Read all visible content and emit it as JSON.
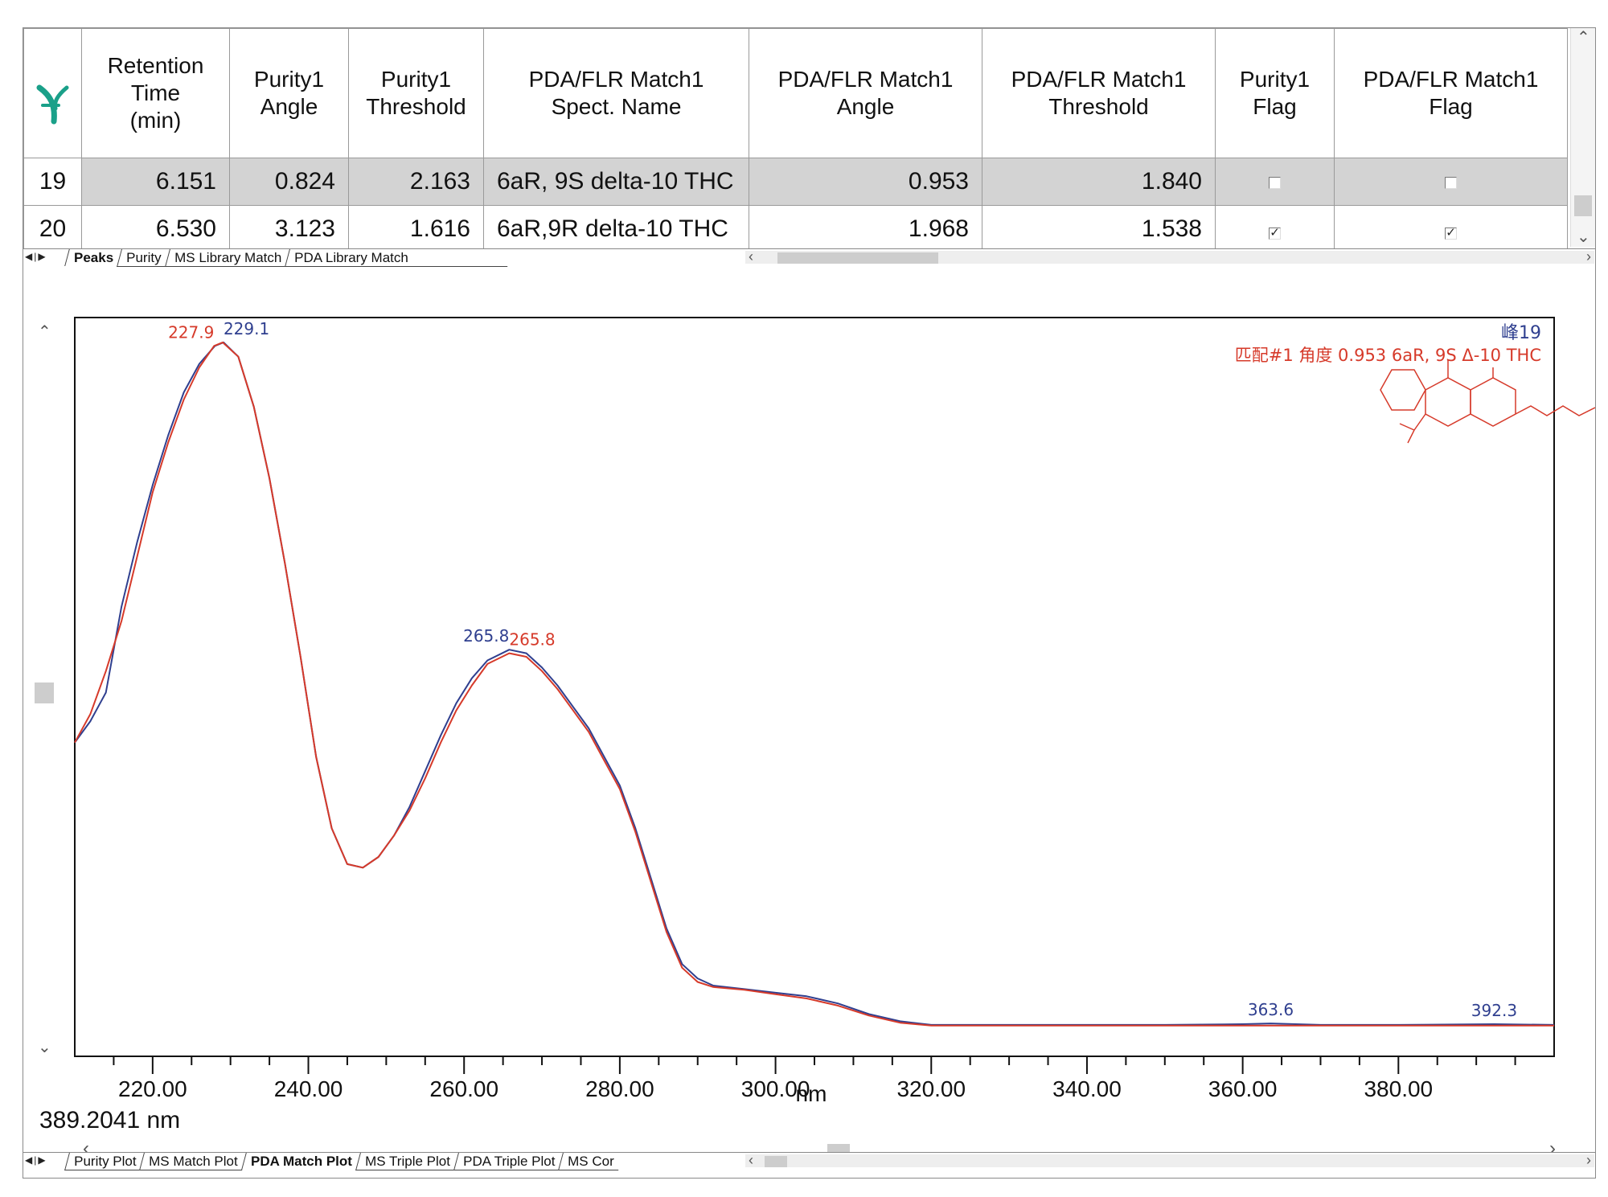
{
  "grid": {
    "corner_icon": "peak-icon",
    "columns": [
      "Retention\nTime\n(min)",
      "Purity1\nAngle",
      "Purity1\nThreshold",
      "PDA/FLR Match1\nSpect. Name",
      "PDA/FLR Match1\nAngle",
      "PDA/FLR Match1\nThreshold",
      "Purity1\nFlag",
      "PDA/FLR Match1\nFlag"
    ],
    "rows": [
      {
        "index": "19",
        "rt": "6.151",
        "purity_angle": "0.824",
        "purity_threshold": "2.163",
        "spect_name": "6aR, 9S delta-10 THC",
        "match_angle": "0.953",
        "match_threshold": "1.840",
        "purity_flag": false,
        "match_flag": false,
        "selected": true
      },
      {
        "index": "20",
        "rt": "6.530",
        "purity_angle": "3.123",
        "purity_threshold": "1.616",
        "spect_name": "6aR,9R delta-10 THC",
        "match_angle": "1.968",
        "match_threshold": "1.538",
        "purity_flag": true,
        "match_flag": true,
        "selected": false
      }
    ]
  },
  "top_tabs": [
    "Peaks",
    "Purity",
    "MS Library Match",
    "PDA Library Match"
  ],
  "top_tabs_active": "Peaks",
  "bottom_tabs": [
    "Purity Plot",
    "MS Match Plot",
    "PDA Match Plot",
    "MS Triple Plot",
    "PDA Triple Plot",
    "MS Cor"
  ],
  "bottom_tabs_active": "PDA Match Plot",
  "cursor_readout": "389.2041 nm",
  "colors": {
    "sample": "#2f3f8f",
    "library": "#d63a2a",
    "selected_row": "#d3d3d3",
    "accent_icon": "#1aa089"
  },
  "chart_data": {
    "type": "line",
    "xlabel": "nm",
    "ylabel": "",
    "xlim": [
      210,
      400
    ],
    "ylim": [
      0,
      1
    ],
    "x_ticks": [
      "220.00",
      "240.00",
      "260.00",
      "280.00",
      "300.00",
      "320.00",
      "340.00",
      "360.00",
      "380.00"
    ],
    "peak_title": "峰19",
    "match_text": "匹配#1 角度 0.953 6aR, 9S Δ-10 THC",
    "series": [
      {
        "color": "#2f3f8f",
        "points": [
          [
            210,
            0.43
          ],
          [
            212,
            0.46
          ],
          [
            214,
            0.5
          ],
          [
            216,
            0.62
          ],
          [
            218,
            0.71
          ],
          [
            220,
            0.79
          ],
          [
            222,
            0.86
          ],
          [
            224,
            0.92
          ],
          [
            226,
            0.96
          ],
          [
            228,
            0.985
          ],
          [
            229.1,
            0.99
          ],
          [
            231,
            0.97
          ],
          [
            233,
            0.9
          ],
          [
            235,
            0.8
          ],
          [
            237,
            0.68
          ],
          [
            239,
            0.55
          ],
          [
            241,
            0.41
          ],
          [
            243,
            0.31
          ],
          [
            245,
            0.26
          ],
          [
            247,
            0.255
          ],
          [
            249,
            0.27
          ],
          [
            251,
            0.3
          ],
          [
            253,
            0.34
          ],
          [
            255,
            0.39
          ],
          [
            257,
            0.44
          ],
          [
            259,
            0.485
          ],
          [
            261,
            0.52
          ],
          [
            263,
            0.545
          ],
          [
            265.8,
            0.56
          ],
          [
            268,
            0.555
          ],
          [
            270,
            0.535
          ],
          [
            272,
            0.51
          ],
          [
            274,
            0.48
          ],
          [
            276,
            0.45
          ],
          [
            278,
            0.41
          ],
          [
            280,
            0.37
          ],
          [
            282,
            0.31
          ],
          [
            284,
            0.24
          ],
          [
            286,
            0.17
          ],
          [
            288,
            0.12
          ],
          [
            290,
            0.1
          ],
          [
            292,
            0.09
          ],
          [
            296,
            0.085
          ],
          [
            300,
            0.08
          ],
          [
            304,
            0.075
          ],
          [
            308,
            0.065
          ],
          [
            312,
            0.05
          ],
          [
            316,
            0.04
          ],
          [
            320,
            0.035
          ],
          [
            330,
            0.035
          ],
          [
            340,
            0.035
          ],
          [
            350,
            0.035
          ],
          [
            360,
            0.036
          ],
          [
            363.6,
            0.037
          ],
          [
            370,
            0.035
          ],
          [
            380,
            0.035
          ],
          [
            392.3,
            0.036
          ],
          [
            400,
            0.035
          ]
        ]
      },
      {
        "color": "#d63a2a",
        "points": [
          [
            210,
            0.43
          ],
          [
            212,
            0.47
          ],
          [
            214,
            0.53
          ],
          [
            216,
            0.6
          ],
          [
            218,
            0.69
          ],
          [
            220,
            0.78
          ],
          [
            222,
            0.85
          ],
          [
            224,
            0.91
          ],
          [
            226,
            0.955
          ],
          [
            227.9,
            0.985
          ],
          [
            229,
            0.99
          ],
          [
            231,
            0.97
          ],
          [
            233,
            0.9
          ],
          [
            235,
            0.8
          ],
          [
            237,
            0.68
          ],
          [
            239,
            0.55
          ],
          [
            241,
            0.41
          ],
          [
            243,
            0.31
          ],
          [
            245,
            0.26
          ],
          [
            247,
            0.255
          ],
          [
            249,
            0.27
          ],
          [
            251,
            0.3
          ],
          [
            253,
            0.335
          ],
          [
            255,
            0.38
          ],
          [
            257,
            0.43
          ],
          [
            259,
            0.475
          ],
          [
            261,
            0.51
          ],
          [
            263,
            0.54
          ],
          [
            265.8,
            0.555
          ],
          [
            268,
            0.55
          ],
          [
            270,
            0.53
          ],
          [
            272,
            0.505
          ],
          [
            274,
            0.475
          ],
          [
            276,
            0.445
          ],
          [
            278,
            0.405
          ],
          [
            280,
            0.365
          ],
          [
            282,
            0.305
          ],
          [
            284,
            0.235
          ],
          [
            286,
            0.165
          ],
          [
            288,
            0.115
          ],
          [
            290,
            0.095
          ],
          [
            292,
            0.088
          ],
          [
            296,
            0.084
          ],
          [
            300,
            0.078
          ],
          [
            304,
            0.072
          ],
          [
            308,
            0.062
          ],
          [
            312,
            0.048
          ],
          [
            316,
            0.038
          ],
          [
            320,
            0.034
          ],
          [
            330,
            0.034
          ],
          [
            340,
            0.034
          ],
          [
            350,
            0.034
          ],
          [
            360,
            0.034
          ],
          [
            370,
            0.034
          ],
          [
            380,
            0.034
          ],
          [
            390,
            0.034
          ],
          [
            400,
            0.034
          ]
        ]
      }
    ],
    "peak_labels": [
      {
        "text": "227.9",
        "x": 227.9,
        "y": 0.985,
        "color": "#d63a2a",
        "side": "left"
      },
      {
        "text": "229.1",
        "x": 229.1,
        "y": 0.99,
        "color": "#2f3f8f",
        "side": "right"
      },
      {
        "text": "265.8",
        "x": 265.8,
        "y": 0.56,
        "color": "#2f3f8f",
        "side": "left"
      },
      {
        "text": "265.8",
        "x": 265.8,
        "y": 0.555,
        "color": "#d63a2a",
        "side": "right"
      },
      {
        "text": "363.6",
        "x": 363.6,
        "y": 0.037,
        "color": "#2f3f8f",
        "side": "center"
      },
      {
        "text": "392.3",
        "x": 392.3,
        "y": 0.036,
        "color": "#2f3f8f",
        "side": "center"
      }
    ]
  }
}
